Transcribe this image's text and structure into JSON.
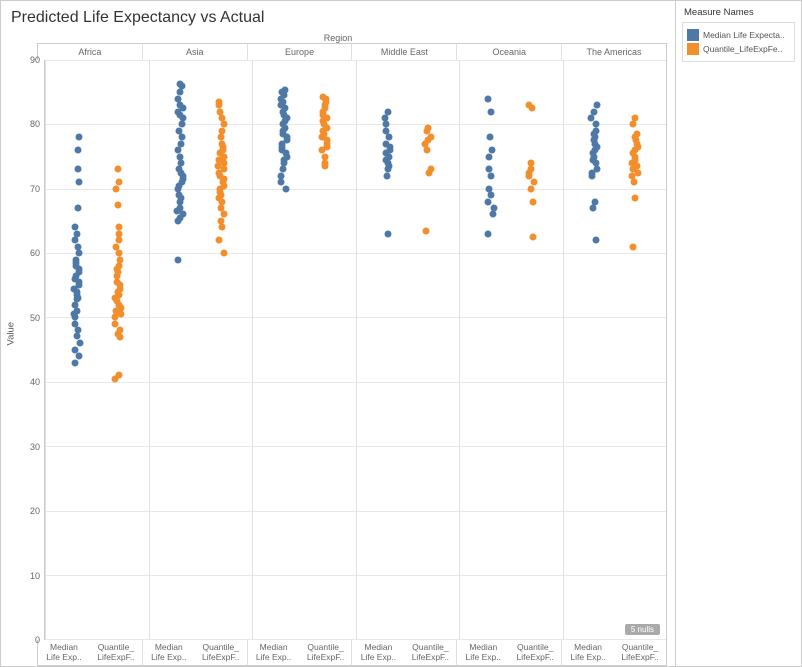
{
  "title": "Predicted Life Expectancy vs Actual",
  "region_label": "Region",
  "ylabel": "Value",
  "ylim": [
    0,
    90
  ],
  "yticks": [
    0,
    10,
    20,
    30,
    40,
    50,
    60,
    70,
    80,
    90
  ],
  "grid_color": "#e8e8e8",
  "background_color": "#ffffff",
  "nulls_badge": "5 nulls",
  "marker_size": 7,
  "regions": [
    "Africa",
    "Asia",
    "Europe",
    "Middle East",
    "Oceania",
    "The Americas"
  ],
  "series": [
    {
      "name": "Median Life Expecta..",
      "short": "Median Life Exp..",
      "stack": "Median\nLife Exp..",
      "color": "#4e79a7"
    },
    {
      "name": "Quantile_LifeExpFe..",
      "short": "Quantile_LifeExpF..",
      "stack": "Quantile_\nLifeExpF..",
      "color": "#f28e2b"
    }
  ],
  "legend_title": "Measure Names",
  "chart": {
    "type": "strip-scatter",
    "panels": [
      {
        "region": "Africa",
        "columns": [
          {
            "series": 0,
            "x": 0.3,
            "values": [
              43,
              44,
              45,
              46,
              47.2,
              48,
              49,
              50,
              50.5,
              51,
              52,
              52.8,
              53,
              53.5,
              54,
              54.5,
              55,
              55.5,
              56,
              56.5,
              57,
              57.5,
              58,
              58.5,
              59,
              60,
              61,
              62,
              63,
              64,
              67,
              71,
              73,
              76,
              78
            ]
          },
          {
            "series": 1,
            "x": 0.7,
            "values": [
              40.5,
              41,
              47,
              47.5,
              48,
              49,
              50,
              50.5,
              51,
              51.5,
              52,
              52.5,
              53,
              53.5,
              54,
              54.5,
              55,
              55.5,
              56.5,
              57,
              57.5,
              58,
              59,
              60,
              61,
              62,
              63,
              64,
              67.5,
              70,
              71,
              73
            ]
          }
        ]
      },
      {
        "region": "Asia",
        "columns": [
          {
            "series": 0,
            "x": 0.3,
            "values": [
              59,
              65,
              65.5,
              66,
              66.5,
              67,
              68,
              68.5,
              69,
              70,
              70.5,
              71,
              71.5,
              72,
              72.5,
              73,
              74,
              75,
              76,
              77,
              78,
              79,
              80,
              81,
              81.5,
              82,
              82.5,
              83,
              84,
              85,
              86,
              86.3
            ]
          },
          {
            "series": 1,
            "x": 0.7,
            "values": [
              60,
              62,
              64,
              65,
              66,
              67,
              68,
              68.5,
              69,
              69.5,
              70,
              70.5,
              71,
              71.5,
              72,
              72.5,
              73,
              73.5,
              74,
              74.5,
              75,
              75.5,
              76,
              76.5,
              77,
              78,
              79,
              80,
              81,
              82,
              83,
              83.5
            ]
          }
        ]
      },
      {
        "region": "Europe",
        "columns": [
          {
            "series": 0,
            "x": 0.3,
            "values": [
              70,
              71,
              72,
              73,
              74,
              74.5,
              75,
              75.5,
              76,
              76.5,
              77,
              77.5,
              78,
              78.5,
              79,
              79.5,
              80,
              80.5,
              81,
              81.5,
              82,
              82.5,
              83,
              83.5,
              84,
              84.5,
              85,
              85.3
            ]
          },
          {
            "series": 1,
            "x": 0.7,
            "values": [
              73.5,
              74,
              75,
              76,
              76.5,
              77,
              77.5,
              78,
              78.5,
              79,
              79.5,
              80,
              80.5,
              81,
              81.5,
              82,
              82.5,
              83,
              83.5,
              84,
              84.3
            ]
          }
        ]
      },
      {
        "region": "Middle East",
        "columns": [
          {
            "series": 0,
            "x": 0.3,
            "values": [
              63,
              72,
              73,
              73.5,
              74,
              74.5,
              75,
              75.5,
              76,
              76.5,
              77,
              78,
              79,
              80,
              81,
              82
            ]
          },
          {
            "series": 1,
            "x": 0.7,
            "values": [
              63.5,
              72.5,
              73,
              76,
              77,
              77.5,
              78,
              79,
              79.5
            ]
          }
        ]
      },
      {
        "region": "Oceania",
        "columns": [
          {
            "series": 0,
            "x": 0.3,
            "values": [
              63,
              66,
              67,
              68,
              69,
              70,
              72,
              73,
              75,
              76,
              78,
              82,
              84
            ]
          },
          {
            "series": 1,
            "x": 0.7,
            "values": [
              62.5,
              68,
              70,
              71,
              72,
              72.5,
              73,
              74,
              82.5,
              83
            ]
          }
        ]
      },
      {
        "region": "The Americas",
        "columns": [
          {
            "series": 0,
            "x": 0.3,
            "values": [
              62,
              67,
              68,
              72,
              72.5,
              73,
              74,
              74.5,
              75,
              75.5,
              76,
              76.5,
              77,
              77.5,
              78,
              78.5,
              79,
              80,
              81,
              82,
              83
            ]
          },
          {
            "series": 1,
            "x": 0.7,
            "values": [
              61,
              68.5,
              71,
              72,
              72.5,
              73,
              73.5,
              74,
              74.5,
              75,
              75.5,
              76,
              76.5,
              77,
              77.5,
              78,
              78.5,
              80,
              81
            ]
          }
        ]
      }
    ]
  }
}
